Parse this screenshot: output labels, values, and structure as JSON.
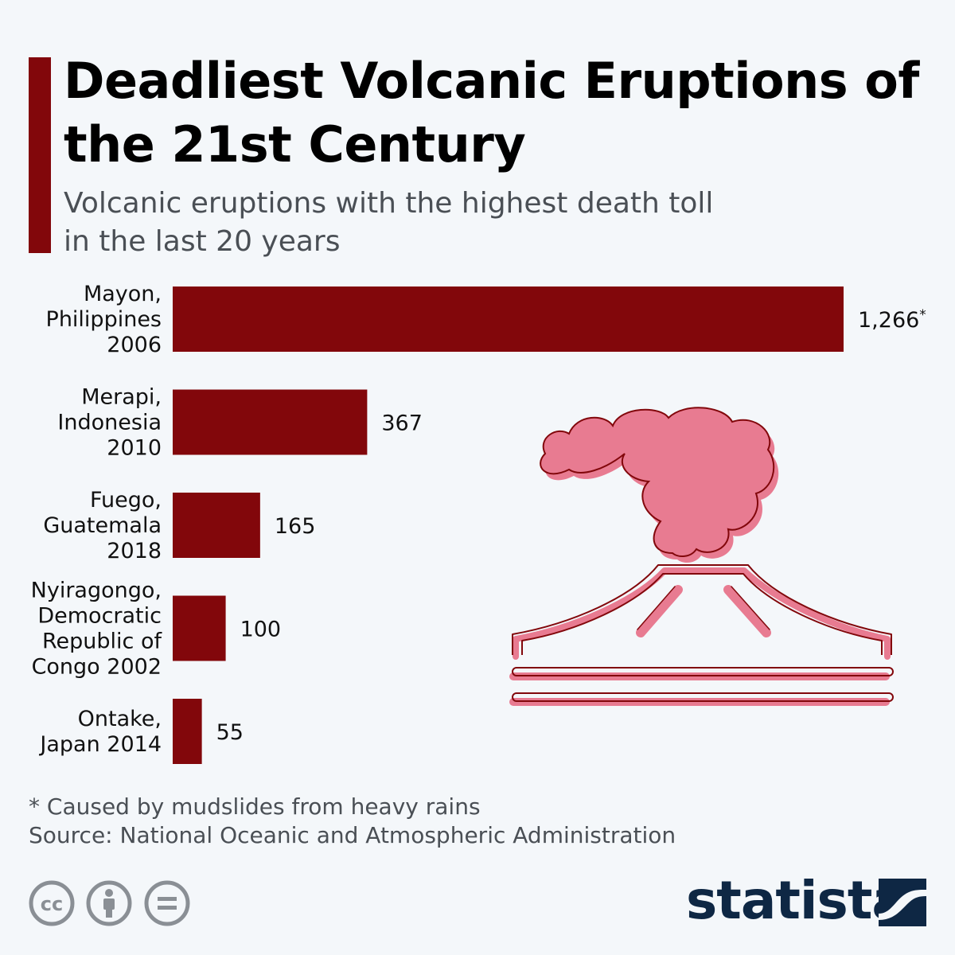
{
  "header": {
    "title": "Deadliest Volcanic Eruptions of the 21st Century",
    "subtitle": "Volcanic eruptions with the highest death toll in the last 20 years"
  },
  "chart_data": {
    "type": "bar",
    "orientation": "horizontal",
    "categories": [
      [
        "Mayon,",
        "Philippines",
        "2006"
      ],
      [
        "Merapi,",
        "Indonesia",
        "2010"
      ],
      [
        "Fuego,",
        "Guatemala",
        "2018"
      ],
      [
        "Nyiragongo,",
        "Democratic",
        "Republic of",
        "Congo 2002"
      ],
      [
        "Ontake,",
        "Japan 2014"
      ]
    ],
    "values": [
      1266,
      367,
      165,
      100,
      55
    ],
    "value_labels": [
      "1,266",
      "367",
      "165",
      "100",
      "55"
    ],
    "value_label_suffix": [
      "*",
      "",
      "",
      "",
      ""
    ],
    "bar_color": "#82070b",
    "grid": false,
    "legend": "none",
    "xlim": [
      0,
      1266
    ]
  },
  "footer": {
    "footnote": "* Caused by mudslides from heavy rains",
    "source": "Source: National Oceanic and Atmospheric Administration",
    "license_icons": [
      "creative-commons-icon",
      "attribution-icon",
      "no-derivatives-icon"
    ],
    "brand": "statista"
  },
  "colors": {
    "accent": "#82070b",
    "brand": "#0e2744",
    "illustration_fill": "#e87b91",
    "illustration_stroke": "#82070b"
  }
}
